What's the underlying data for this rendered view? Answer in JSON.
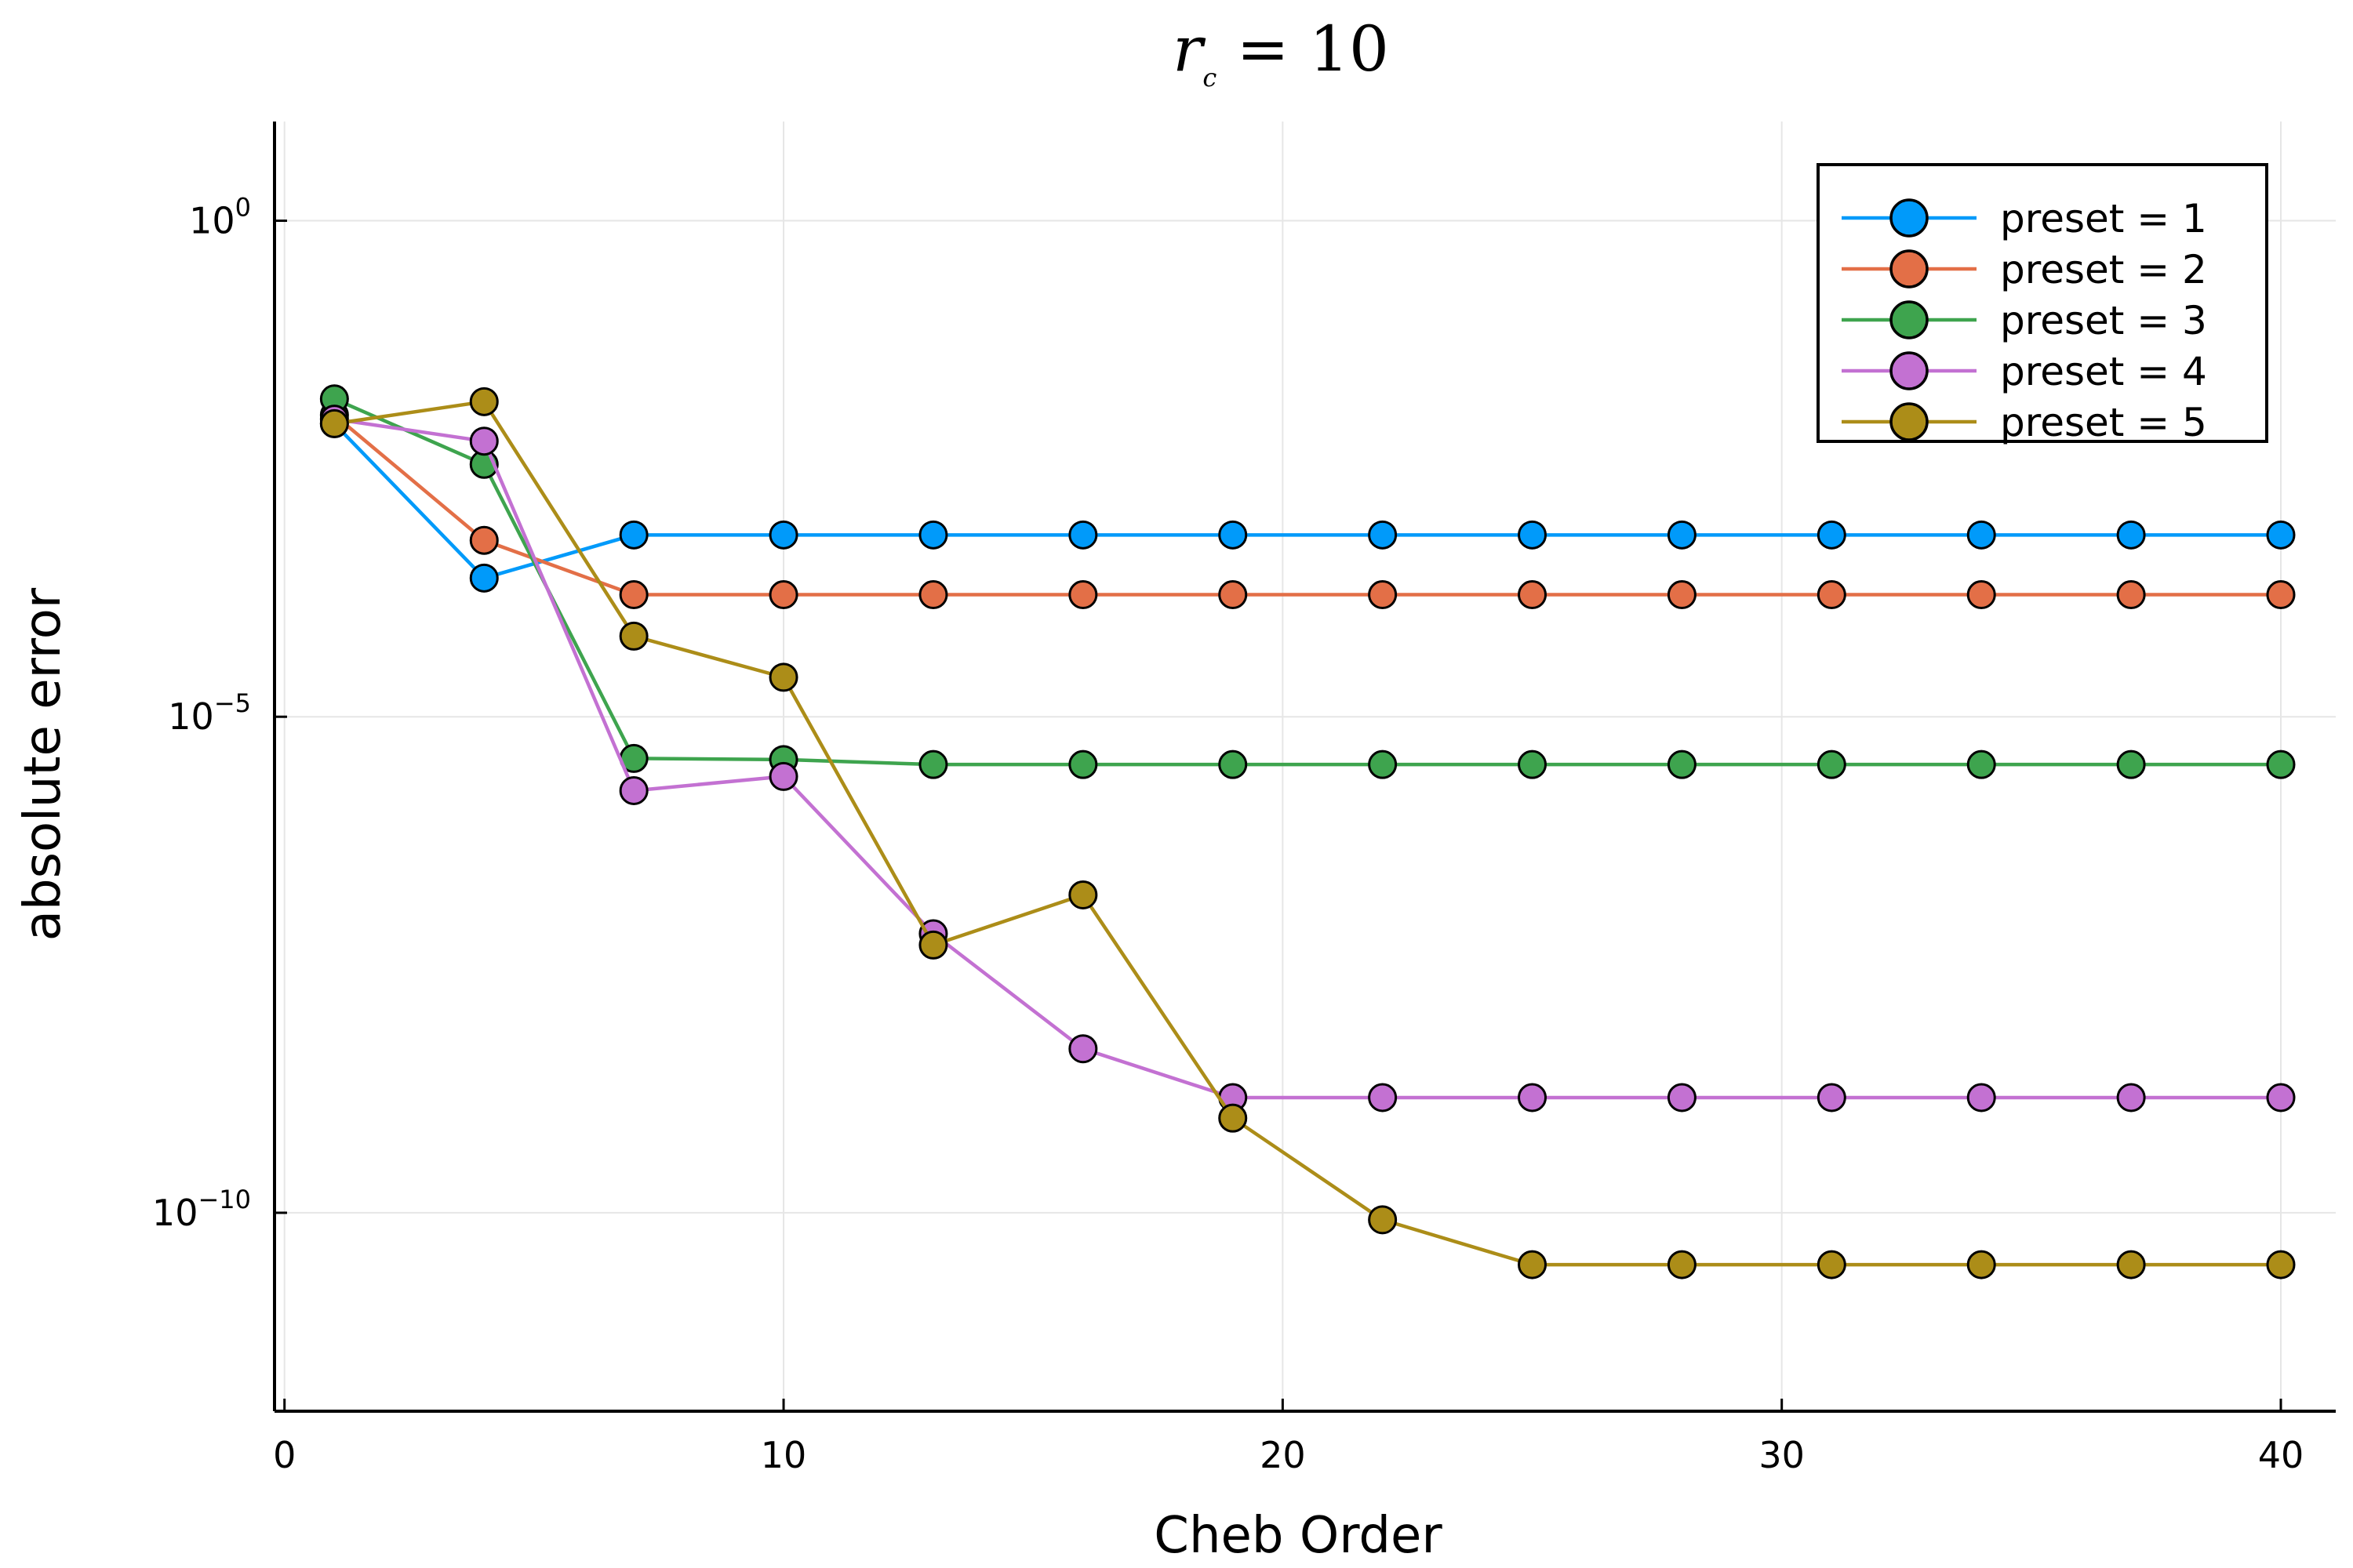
{
  "chart_data": {
    "type": "line",
    "title": "r",
    "title_subscript": "c",
    "title_rest": " = 10",
    "xlabel": "Cheb Order",
    "ylabel": "absolute error",
    "xlim": [
      -0.2,
      41.1
    ],
    "ylim_log10": [
      -12,
      1
    ],
    "y_scale": "log",
    "grid": true,
    "legend_position": "top-right",
    "x_ticks": [
      0,
      10,
      20,
      30,
      40
    ],
    "y_ticks": [
      {
        "base": "10",
        "exp": "0",
        "value": 1
      },
      {
        "base": "10",
        "exp": "−5",
        "value": 1e-05
      },
      {
        "base": "10",
        "exp": "−10",
        "value": 1e-10
      }
    ],
    "x": [
      1,
      4,
      7,
      10,
      13,
      16,
      19,
      22,
      25,
      28,
      31,
      34,
      37,
      40
    ],
    "series": [
      {
        "name": "preset = 1",
        "color": "#009AFA",
        "values": [
          0.009,
          0.00025,
          0.00068,
          0.00068,
          0.00068,
          0.00068,
          0.00068,
          0.00068,
          0.00068,
          0.00068,
          0.00068,
          0.00068,
          0.00068,
          0.00068
        ]
      },
      {
        "name": "preset = 2",
        "color": "#E36F47",
        "values": [
          0.011,
          0.0006,
          0.00017,
          0.00017,
          0.00017,
          0.00017,
          0.00017,
          0.00017,
          0.00017,
          0.00017,
          0.00017,
          0.00017,
          0.00017,
          0.00017
        ]
      },
      {
        "name": "preset = 3",
        "color": "#3EA44E",
        "values": [
          0.016,
          0.0035,
          3.8e-06,
          3.7e-06,
          3.3e-06,
          3.3e-06,
          3.3e-06,
          3.3e-06,
          3.3e-06,
          3.3e-06,
          3.3e-06,
          3.3e-06,
          3.3e-06,
          3.3e-06
        ]
      },
      {
        "name": "preset = 4",
        "color": "#C371D2",
        "values": [
          0.01,
          0.006,
          1.8e-06,
          2.5e-06,
          6.5e-08,
          4.5e-09,
          1.45e-09,
          1.45e-09,
          1.45e-09,
          1.45e-09,
          1.45e-09,
          1.45e-09,
          1.45e-09,
          1.45e-09
        ]
      },
      {
        "name": "preset = 5",
        "color": "#AC8D18",
        "values": [
          0.009,
          0.015,
          6.5e-05,
          2.5e-05,
          5e-08,
          1.6e-07,
          9e-10,
          8.5e-11,
          3e-11,
          3e-11,
          3e-11,
          3e-11,
          3e-11,
          3e-11
        ]
      }
    ]
  }
}
